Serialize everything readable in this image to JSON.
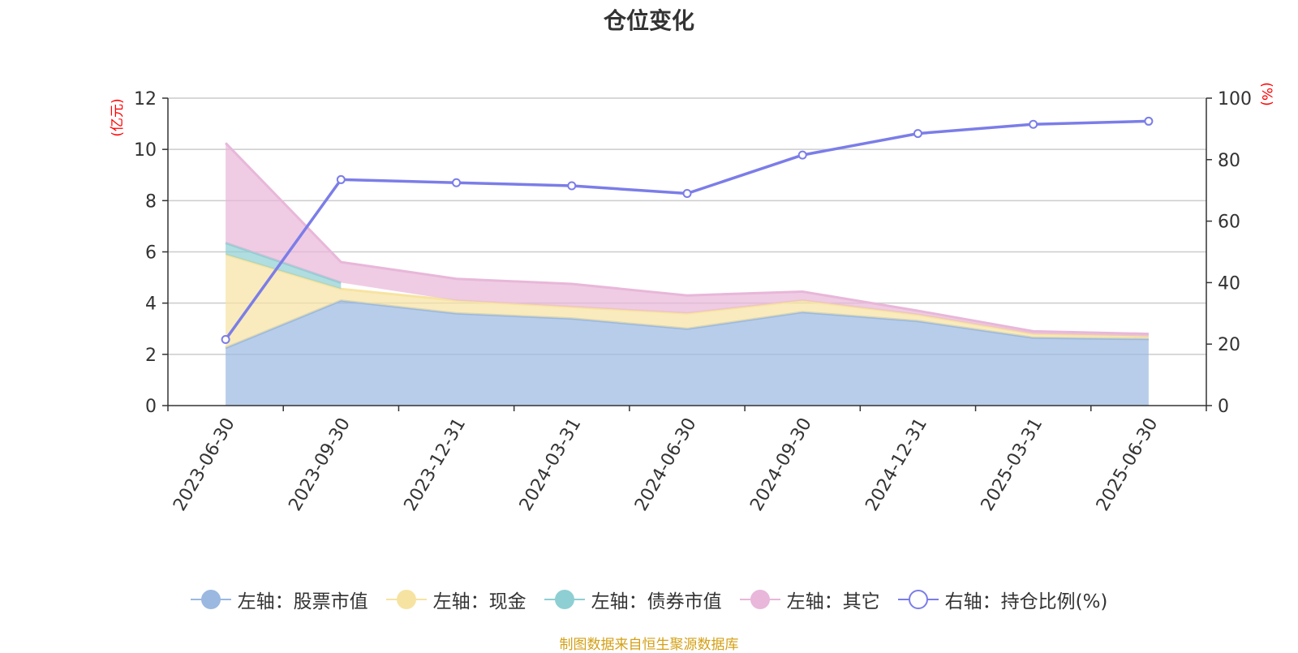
{
  "title": "仓位变化",
  "source_note": "制图数据来自恒生聚源数据库",
  "chart_data": {
    "type": "area",
    "categories": [
      "2023-06-30",
      "2023-09-30",
      "2023-12-31",
      "2024-03-31",
      "2024-06-30",
      "2024-09-30",
      "2024-12-31",
      "2025-03-31",
      "2025-06-30"
    ],
    "left_axis": {
      "unit_label": "(亿元)",
      "ylim": [
        0,
        12
      ],
      "ticks": [
        0,
        2,
        4,
        6,
        8,
        10,
        12
      ]
    },
    "right_axis": {
      "unit_label": "(%)",
      "ylim": [
        0,
        100
      ],
      "ticks": [
        0,
        20,
        40,
        60,
        80,
        100
      ]
    },
    "stacked": true,
    "series": [
      {
        "name": "左轴：股票市值",
        "axis": "left",
        "type": "area",
        "color": "#9ab8e0",
        "values": [
          2.25,
          4.1,
          3.6,
          3.4,
          3.0,
          3.65,
          3.3,
          2.65,
          2.6
        ]
      },
      {
        "name": "左轴：现金",
        "axis": "left",
        "type": "area",
        "color": "#f7e3a1",
        "values": [
          3.65,
          0.45,
          0.5,
          0.45,
          0.6,
          0.45,
          0.25,
          0.15,
          0.1
        ]
      },
      {
        "name": "左轴：债券市值",
        "axis": "left",
        "type": "area",
        "color": "#8ecfd3",
        "values": [
          0.45,
          0.25,
          null,
          null,
          null,
          null,
          null,
          null,
          null
        ]
      },
      {
        "name": "左轴：其它",
        "axis": "left",
        "type": "area",
        "color": "#e8b7d9",
        "values": [
          3.9,
          0.8,
          0.85,
          0.9,
          0.7,
          0.35,
          0.15,
          0.1,
          0.1
        ]
      },
      {
        "name": "右轴：持仓比例(%)",
        "axis": "right",
        "type": "line",
        "color": "#7b7de8",
        "values": [
          21.5,
          73.5,
          72.5,
          71.5,
          69.0,
          81.5,
          88.5,
          91.5,
          92.5
        ]
      }
    ],
    "grid": true,
    "legend_position": "bottom"
  }
}
